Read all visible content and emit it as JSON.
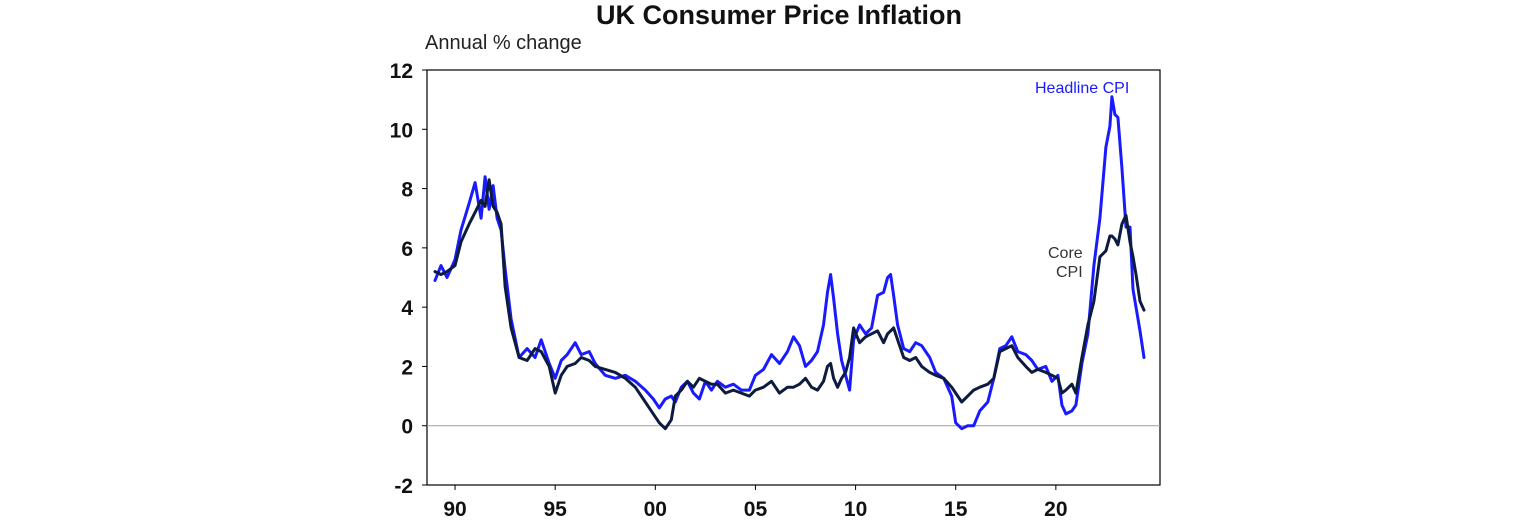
{
  "chart_data": {
    "type": "line",
    "title": "UK Consumer Price Inflation",
    "ylabel": "Annual % change",
    "xlabel": "",
    "x_tick_labels": [
      "90",
      "95",
      "00",
      "05",
      "10",
      "15",
      "20"
    ],
    "x_tick_values": [
      1990,
      1995,
      2000,
      2005,
      2010,
      2015,
      2020
    ],
    "xlim": [
      1988.6,
      2025.2
    ],
    "ylim": [
      -2,
      12
    ],
    "y_ticks": [
      -2,
      0,
      2,
      4,
      6,
      8,
      10,
      12
    ],
    "y_tick_labels": [
      "-2",
      "0",
      "2",
      "4",
      "6",
      "8",
      "10",
      "12"
    ],
    "grid": false,
    "reference_line": 0,
    "series": [
      {
        "name": "Headline CPI",
        "color": "#1a1aff",
        "points": [
          [
            1989.0,
            4.9
          ],
          [
            1989.3,
            5.4
          ],
          [
            1989.6,
            5.0
          ],
          [
            1990.0,
            5.6
          ],
          [
            1990.3,
            6.6
          ],
          [
            1990.7,
            7.5
          ],
          [
            1991.0,
            8.2
          ],
          [
            1991.3,
            7.0
          ],
          [
            1991.5,
            8.4
          ],
          [
            1991.7,
            7.3
          ],
          [
            1991.9,
            8.1
          ],
          [
            1992.1,
            7.0
          ],
          [
            1992.3,
            6.6
          ],
          [
            1992.5,
            5.3
          ],
          [
            1992.8,
            3.6
          ],
          [
            1993.2,
            2.3
          ],
          [
            1993.6,
            2.6
          ],
          [
            1994.0,
            2.3
          ],
          [
            1994.3,
            2.9
          ],
          [
            1994.7,
            2.1
          ],
          [
            1995.0,
            1.6
          ],
          [
            1995.3,
            2.2
          ],
          [
            1995.6,
            2.4
          ],
          [
            1996.0,
            2.8
          ],
          [
            1996.3,
            2.4
          ],
          [
            1996.7,
            2.5
          ],
          [
            1997.0,
            2.1
          ],
          [
            1997.5,
            1.7
          ],
          [
            1998.0,
            1.6
          ],
          [
            1998.5,
            1.7
          ],
          [
            1999.0,
            1.5
          ],
          [
            1999.5,
            1.2
          ],
          [
            1999.9,
            0.9
          ],
          [
            2000.2,
            0.6
          ],
          [
            2000.5,
            0.9
          ],
          [
            2000.8,
            1.0
          ],
          [
            2001.0,
            0.8
          ],
          [
            2001.3,
            1.3
          ],
          [
            2001.6,
            1.5
          ],
          [
            2001.9,
            1.1
          ],
          [
            2002.2,
            0.9
          ],
          [
            2002.5,
            1.5
          ],
          [
            2002.8,
            1.2
          ],
          [
            2003.1,
            1.5
          ],
          [
            2003.5,
            1.3
          ],
          [
            2003.9,
            1.4
          ],
          [
            2004.3,
            1.2
          ],
          [
            2004.7,
            1.2
          ],
          [
            2005.0,
            1.7
          ],
          [
            2005.4,
            1.9
          ],
          [
            2005.8,
            2.4
          ],
          [
            2006.2,
            2.1
          ],
          [
            2006.6,
            2.5
          ],
          [
            2006.9,
            3.0
          ],
          [
            2007.2,
            2.7
          ],
          [
            2007.5,
            2.0
          ],
          [
            2007.8,
            2.2
          ],
          [
            2008.1,
            2.5
          ],
          [
            2008.4,
            3.4
          ],
          [
            2008.6,
            4.5
          ],
          [
            2008.75,
            5.1
          ],
          [
            2008.9,
            4.3
          ],
          [
            2009.1,
            3.1
          ],
          [
            2009.3,
            2.2
          ],
          [
            2009.5,
            1.7
          ],
          [
            2009.7,
            1.2
          ],
          [
            2009.9,
            2.9
          ],
          [
            2010.2,
            3.4
          ],
          [
            2010.5,
            3.1
          ],
          [
            2010.8,
            3.3
          ],
          [
            2011.1,
            4.4
          ],
          [
            2011.4,
            4.5
          ],
          [
            2011.6,
            5.0
          ],
          [
            2011.75,
            5.1
          ],
          [
            2011.9,
            4.4
          ],
          [
            2012.1,
            3.4
          ],
          [
            2012.4,
            2.6
          ],
          [
            2012.7,
            2.5
          ],
          [
            2013.0,
            2.8
          ],
          [
            2013.3,
            2.7
          ],
          [
            2013.7,
            2.3
          ],
          [
            2014.0,
            1.8
          ],
          [
            2014.4,
            1.6
          ],
          [
            2014.8,
            1.0
          ],
          [
            2015.0,
            0.1
          ],
          [
            2015.3,
            -0.1
          ],
          [
            2015.6,
            0.0
          ],
          [
            2015.9,
            0.0
          ],
          [
            2016.2,
            0.5
          ],
          [
            2016.6,
            0.8
          ],
          [
            2016.9,
            1.6
          ],
          [
            2017.2,
            2.6
          ],
          [
            2017.5,
            2.7
          ],
          [
            2017.8,
            3.0
          ],
          [
            2018.1,
            2.5
          ],
          [
            2018.5,
            2.4
          ],
          [
            2018.8,
            2.2
          ],
          [
            2019.1,
            1.9
          ],
          [
            2019.5,
            2.0
          ],
          [
            2019.8,
            1.5
          ],
          [
            2020.1,
            1.7
          ],
          [
            2020.3,
            0.7
          ],
          [
            2020.5,
            0.4
          ],
          [
            2020.8,
            0.5
          ],
          [
            2021.0,
            0.7
          ],
          [
            2021.3,
            2.1
          ],
          [
            2021.6,
            3.1
          ],
          [
            2021.9,
            5.4
          ],
          [
            2022.2,
            7.0
          ],
          [
            2022.5,
            9.4
          ],
          [
            2022.7,
            10.1
          ],
          [
            2022.8,
            11.1
          ],
          [
            2022.95,
            10.5
          ],
          [
            2023.1,
            10.4
          ],
          [
            2023.3,
            8.7
          ],
          [
            2023.5,
            6.7
          ],
          [
            2023.7,
            6.7
          ],
          [
            2023.85,
            4.6
          ],
          [
            2024.0,
            4.0
          ],
          [
            2024.2,
            3.2
          ],
          [
            2024.4,
            2.3
          ]
        ]
      },
      {
        "name": "Core CPI",
        "color": "#0d1b3e",
        "points": [
          [
            1989.0,
            5.2
          ],
          [
            1989.3,
            5.1
          ],
          [
            1989.6,
            5.2
          ],
          [
            1990.0,
            5.4
          ],
          [
            1990.3,
            6.2
          ],
          [
            1990.7,
            6.8
          ],
          [
            1991.0,
            7.2
          ],
          [
            1991.3,
            7.6
          ],
          [
            1991.5,
            7.4
          ],
          [
            1991.7,
            8.3
          ],
          [
            1991.9,
            7.4
          ],
          [
            1992.1,
            7.2
          ],
          [
            1992.3,
            6.8
          ],
          [
            1992.5,
            4.7
          ],
          [
            1992.8,
            3.3
          ],
          [
            1993.2,
            2.3
          ],
          [
            1993.6,
            2.2
          ],
          [
            1994.0,
            2.6
          ],
          [
            1994.3,
            2.5
          ],
          [
            1994.7,
            2.0
          ],
          [
            1995.0,
            1.1
          ],
          [
            1995.3,
            1.7
          ],
          [
            1995.6,
            2.0
          ],
          [
            1996.0,
            2.1
          ],
          [
            1996.3,
            2.3
          ],
          [
            1996.7,
            2.2
          ],
          [
            1997.0,
            2.0
          ],
          [
            1997.5,
            1.9
          ],
          [
            1998.0,
            1.8
          ],
          [
            1998.5,
            1.6
          ],
          [
            1999.0,
            1.3
          ],
          [
            1999.5,
            0.8
          ],
          [
            1999.9,
            0.4
          ],
          [
            2000.2,
            0.1
          ],
          [
            2000.5,
            -0.1
          ],
          [
            2000.8,
            0.2
          ],
          [
            2001.0,
            1.0
          ],
          [
            2001.3,
            1.2
          ],
          [
            2001.6,
            1.5
          ],
          [
            2001.9,
            1.3
          ],
          [
            2002.2,
            1.6
          ],
          [
            2002.5,
            1.5
          ],
          [
            2002.8,
            1.4
          ],
          [
            2003.1,
            1.4
          ],
          [
            2003.5,
            1.1
          ],
          [
            2003.9,
            1.2
          ],
          [
            2004.3,
            1.1
          ],
          [
            2004.7,
            1.0
          ],
          [
            2005.0,
            1.2
          ],
          [
            2005.4,
            1.3
          ],
          [
            2005.8,
            1.5
          ],
          [
            2006.2,
            1.1
          ],
          [
            2006.6,
            1.3
          ],
          [
            2006.9,
            1.3
          ],
          [
            2007.2,
            1.4
          ],
          [
            2007.5,
            1.6
          ],
          [
            2007.8,
            1.3
          ],
          [
            2008.1,
            1.2
          ],
          [
            2008.4,
            1.5
          ],
          [
            2008.6,
            2.0
          ],
          [
            2008.75,
            2.1
          ],
          [
            2008.9,
            1.6
          ],
          [
            2009.1,
            1.3
          ],
          [
            2009.3,
            1.6
          ],
          [
            2009.5,
            1.8
          ],
          [
            2009.7,
            2.3
          ],
          [
            2009.9,
            3.3
          ],
          [
            2010.2,
            2.8
          ],
          [
            2010.5,
            3.0
          ],
          [
            2010.8,
            3.1
          ],
          [
            2011.1,
            3.2
          ],
          [
            2011.4,
            2.8
          ],
          [
            2011.6,
            3.1
          ],
          [
            2011.75,
            3.2
          ],
          [
            2011.9,
            3.3
          ],
          [
            2012.1,
            2.9
          ],
          [
            2012.4,
            2.3
          ],
          [
            2012.7,
            2.2
          ],
          [
            2013.0,
            2.3
          ],
          [
            2013.3,
            2.0
          ],
          [
            2013.7,
            1.8
          ],
          [
            2014.0,
            1.7
          ],
          [
            2014.4,
            1.6
          ],
          [
            2014.8,
            1.3
          ],
          [
            2015.0,
            1.1
          ],
          [
            2015.3,
            0.8
          ],
          [
            2015.6,
            1.0
          ],
          [
            2015.9,
            1.2
          ],
          [
            2016.2,
            1.3
          ],
          [
            2016.6,
            1.4
          ],
          [
            2016.9,
            1.6
          ],
          [
            2017.2,
            2.5
          ],
          [
            2017.5,
            2.6
          ],
          [
            2017.8,
            2.7
          ],
          [
            2018.1,
            2.3
          ],
          [
            2018.5,
            2.0
          ],
          [
            2018.8,
            1.8
          ],
          [
            2019.1,
            1.9
          ],
          [
            2019.5,
            1.8
          ],
          [
            2019.8,
            1.7
          ],
          [
            2020.1,
            1.6
          ],
          [
            2020.3,
            1.1
          ],
          [
            2020.5,
            1.2
          ],
          [
            2020.8,
            1.4
          ],
          [
            2021.0,
            1.1
          ],
          [
            2021.3,
            2.3
          ],
          [
            2021.6,
            3.4
          ],
          [
            2021.9,
            4.2
          ],
          [
            2022.2,
            5.7
          ],
          [
            2022.5,
            5.9
          ],
          [
            2022.7,
            6.4
          ],
          [
            2022.8,
            6.4
          ],
          [
            2022.95,
            6.3
          ],
          [
            2023.1,
            6.1
          ],
          [
            2023.3,
            6.8
          ],
          [
            2023.5,
            7.1
          ],
          [
            2023.7,
            6.2
          ],
          [
            2023.85,
            5.7
          ],
          [
            2024.0,
            5.1
          ],
          [
            2024.2,
            4.2
          ],
          [
            2024.4,
            3.9
          ]
        ]
      }
    ],
    "annotations": [
      {
        "text": "Headline CPI",
        "color": "#1a1aff"
      },
      {
        "text": "Core",
        "color": "#333333"
      },
      {
        "text": "CPI",
        "color": "#333333"
      }
    ]
  }
}
